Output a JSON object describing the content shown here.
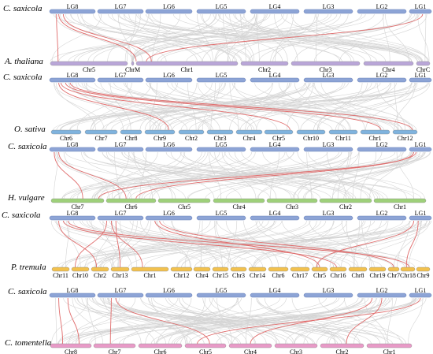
{
  "colors": {
    "cs_bar": "#8da4d6",
    "cs_edge": "#6b82b8",
    "highlight_line": "#e06b6b",
    "background_line": "#d4d4d4",
    "athaliana_bar": "#b9a6d8",
    "osativa_bar": "#7fb3de",
    "hvulgare_bar": "#9ed07a",
    "ptremula_bar": "#f2c14e",
    "ctomentella_bar": "#e89ac7"
  },
  "cs_labels": [
    "LG8",
    "LG7",
    "LG6",
    "LG5",
    "LG4",
    "LG3",
    "LG2",
    "LG1"
  ],
  "panels": [
    {
      "id": "athaliana",
      "ref_species": "C. saxicola",
      "target_species": "A. thaliana",
      "target_color_key": "athaliana_bar",
      "target_labels": [
        "Chr5",
        "ChrM",
        "Chr1",
        "Chr2",
        "Chr3",
        "Chr4",
        "ChrC"
      ]
    },
    {
      "id": "osativa",
      "ref_species": "C. saxicola",
      "target_species": "O. sativa",
      "target_color_key": "osativa_bar",
      "target_labels": [
        "Chr6",
        "Chr7",
        "Chr8",
        "Chr9",
        "Chr2",
        "Chr3",
        "Chr4",
        "Chr5",
        "Chr10",
        "Chr11",
        "Chr1",
        "Chr12"
      ]
    },
    {
      "id": "hvulgare",
      "ref_species": "C. saxicola",
      "target_species": "H. vulgare",
      "target_color_key": "hvulgare_bar",
      "target_labels": [
        "Chr7",
        "Chr6",
        "Chr5",
        "Chr4",
        "Chr3",
        "Chr2",
        "Chr1"
      ]
    },
    {
      "id": "ptremula",
      "ref_species": "C. saxicola",
      "target_species": "P. tremula",
      "target_color_key": "ptremula_bar",
      "target_labels": [
        "Chr11",
        "Chr10",
        "Chr2",
        "Chr13",
        "Chr1",
        "Chr12",
        "Chr4",
        "Chr15",
        "Chr3",
        "Chr14",
        "Chr6",
        "Chr17",
        "Chr5",
        "Chr16",
        "Chr8",
        "Chr19",
        "Chr7",
        "Chr18",
        "Chr9"
      ]
    },
    {
      "id": "ctomentella",
      "ref_species": "C. saxicola",
      "target_species": "C. tomentella",
      "target_color_key": "ctomentella_bar",
      "target_labels": [
        "Chr8",
        "Chr7",
        "Chr6",
        "Chr5",
        "Chr4",
        "Chr3",
        "Chr2",
        "Chr1"
      ]
    }
  ]
}
